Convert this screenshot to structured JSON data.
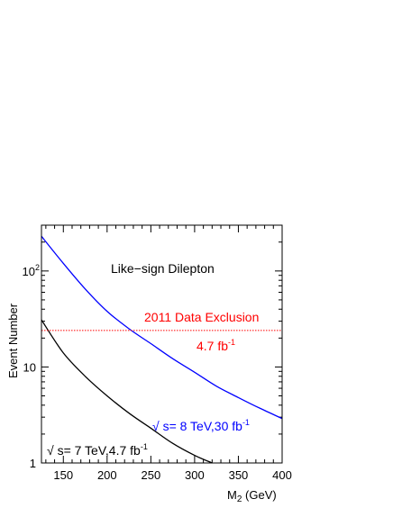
{
  "chart_data": {
    "type": "line",
    "title": "",
    "xlabel": "M",
    "xlabel_sub": "2",
    "xlabel_unit": " (GeV)",
    "ylabel": "Event Number",
    "xlim": [
      125,
      400
    ],
    "ylim": [
      1,
      300
    ],
    "yscale": "log",
    "grid": false,
    "x_ticks": [
      150,
      200,
      250,
      300,
      350,
      400
    ],
    "y_ticks": [
      {
        "value": 1,
        "label": "1"
      },
      {
        "value": 10,
        "label": "10"
      },
      {
        "value": 100,
        "label": "10",
        "sup": "2"
      }
    ],
    "series": [
      {
        "label": "√ s= 8 TeV,30 fb",
        "label_sup": "-1",
        "color": "#0000ff",
        "x": [
          125,
          150,
          175,
          200,
          225,
          250,
          275,
          300,
          325,
          350,
          375,
          400
        ],
        "y": [
          230,
          120,
          65,
          38,
          25,
          17.5,
          12.2,
          8.8,
          6.3,
          4.8,
          3.7,
          2.9
        ]
      },
      {
        "label": "√ s= 7 TeV,4.7 fb",
        "label_sup": "-1",
        "color": "#000000",
        "x": [
          125,
          150,
          175,
          200,
          225,
          250,
          275,
          300,
          320
        ],
        "y": [
          31,
          14,
          8,
          5,
          3.3,
          2.3,
          1.6,
          1.2,
          1
        ]
      }
    ],
    "hlines": [
      {
        "y": 24,
        "color": "#ff0000",
        "style": "dotted"
      }
    ],
    "annotations": {
      "channel": "Like−sign Dilepton",
      "exclusion": "2011 Data Exclusion",
      "lumi": "4.7 fb",
      "lumi_sup": "-1"
    },
    "colors": {
      "exclusion": "#ff0000",
      "s8": "#0000ff",
      "s7": "#000000",
      "axis": "#000000"
    }
  }
}
